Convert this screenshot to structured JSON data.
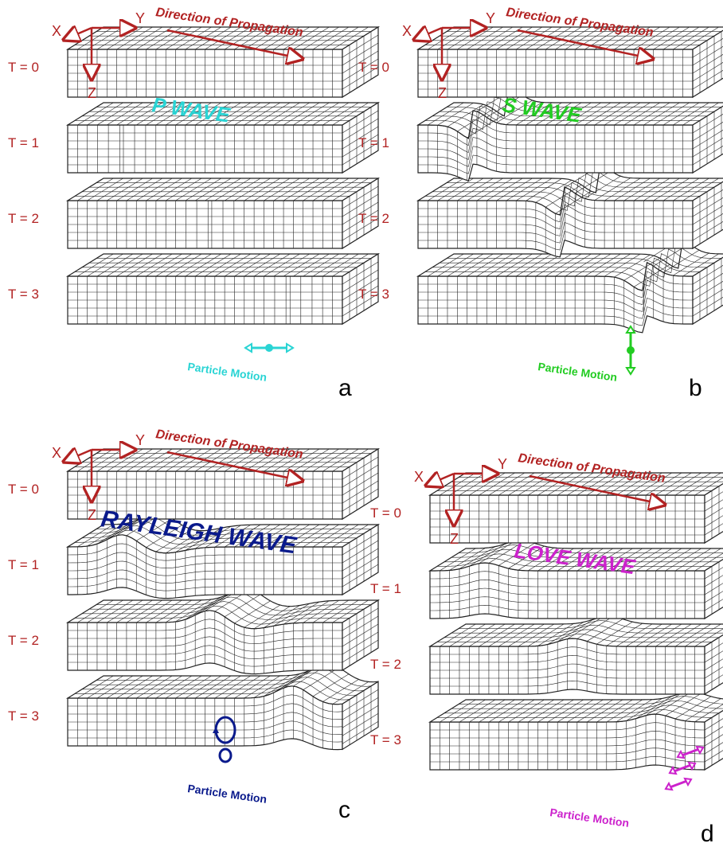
{
  "colors": {
    "axis": "#b22222",
    "grid": "#222222",
    "p_wave": "#2ad4d4",
    "s_wave": "#22cc22",
    "rayleigh_wave": "#0a1a8c",
    "love_wave": "#cc22cc"
  },
  "axes": {
    "x": "X",
    "y": "Y",
    "z": "Z"
  },
  "direction_label": "Direction of Propagation",
  "time_labels": [
    "T = 0",
    "T = 1",
    "T = 2",
    "T = 3"
  ],
  "particle_motion_label": "Particle Motion",
  "panels": [
    {
      "id": "a",
      "letter": "a",
      "wave_label": "P WAVE",
      "wave_type": "p"
    },
    {
      "id": "b",
      "letter": "b",
      "wave_label": "S WAVE",
      "wave_type": "s"
    },
    {
      "id": "c",
      "letter": "c",
      "wave_label": "RAYLEIGH WAVE",
      "wave_type": "rayleigh"
    },
    {
      "id": "d",
      "letter": "d",
      "wave_label": "LOVE WAVE",
      "wave_type": "love"
    }
  ]
}
